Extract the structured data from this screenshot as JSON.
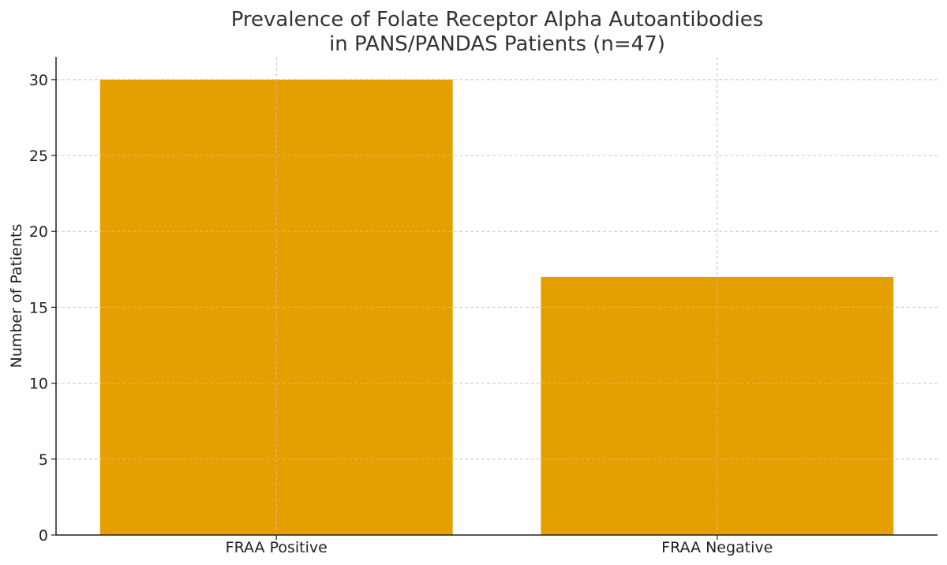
{
  "chart_data": {
    "type": "bar",
    "title_lines": [
      "Prevalence of Folate Receptor Alpha Autoantibodies",
      "in PANS/PANDAS Patients (n=47)"
    ],
    "categories": [
      "FRAA Positive",
      "FRAA Negative"
    ],
    "values": [
      30,
      17
    ],
    "xlabel": "",
    "ylabel": "Number of Patients",
    "ylim": [
      0,
      31.5
    ],
    "yticks": [
      0,
      5,
      10,
      15,
      20,
      25,
      30
    ],
    "ytick_labels": [
      "0",
      "5",
      "10",
      "15",
      "20",
      "25",
      "30"
    ],
    "grid": true,
    "bar_color": "#E5A000"
  }
}
